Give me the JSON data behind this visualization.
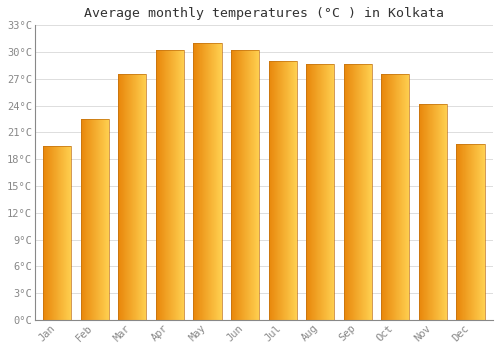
{
  "title": "Average monthly temperatures (°C ) in Kolkata",
  "months": [
    "Jan",
    "Feb",
    "Mar",
    "Apr",
    "May",
    "Jun",
    "Jul",
    "Aug",
    "Sep",
    "Oct",
    "Nov",
    "Dec"
  ],
  "values": [
    19.5,
    22.5,
    27.5,
    30.2,
    31.0,
    30.2,
    29.0,
    28.7,
    28.7,
    27.5,
    24.2,
    19.7
  ],
  "bar_color_left": "#E8860A",
  "bar_color_right": "#FFD050",
  "bar_edge_color": "#C07010",
  "background_color": "#FFFFFF",
  "grid_color": "#DDDDDD",
  "tick_label_color": "#888888",
  "title_color": "#333333",
  "ylim": [
    0,
    33
  ],
  "yticks": [
    0,
    3,
    6,
    9,
    12,
    15,
    18,
    21,
    24,
    27,
    30,
    33
  ],
  "bar_width": 0.75
}
